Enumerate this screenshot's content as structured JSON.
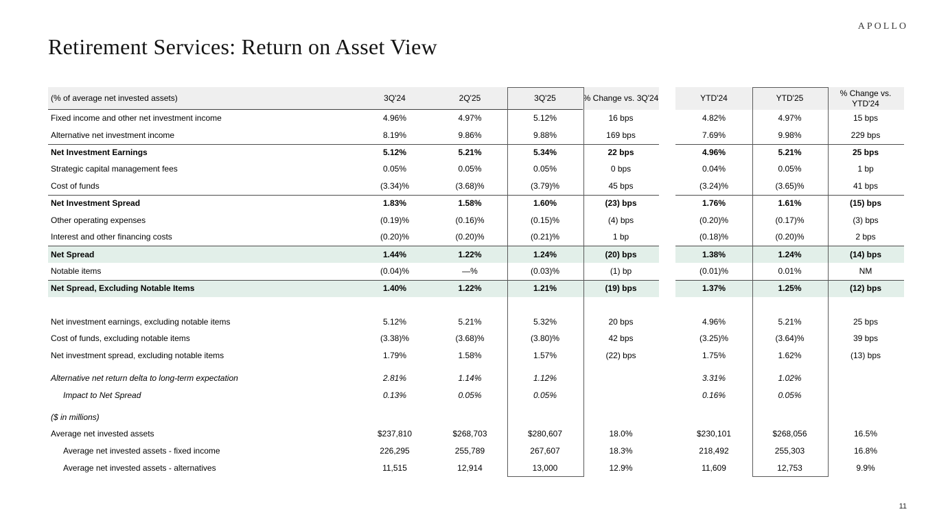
{
  "logo": "APOLLO",
  "title": "Retirement Services: Return on Asset View",
  "page_number": "11",
  "colors": {
    "header_bg": "#efefef",
    "highlight_bg": "#e2efe9",
    "rule_line": "#4a4a4a",
    "column_box_border": "#595959"
  },
  "table": {
    "header": {
      "label": "(% of average net invested assets)",
      "columns": [
        "3Q'24",
        "2Q'25",
        "3Q'25",
        "% Change vs. 3Q'24",
        "YTD'24",
        "YTD'25",
        "% Change vs. YTD'24"
      ]
    },
    "rows": [
      {
        "label": "Fixed income and other net investment income",
        "values": [
          "4.96%",
          "4.97%",
          "5.12%",
          "16 bps",
          "4.82%",
          "4.97%",
          "15 bps"
        ]
      },
      {
        "label": "Alternative net investment income",
        "values": [
          "8.19%",
          "9.86%",
          "9.88%",
          "169 bps",
          "7.69%",
          "9.98%",
          "229 bps"
        ]
      },
      {
        "label": "Net Investment Earnings",
        "values": [
          "5.12%",
          "5.21%",
          "5.34%",
          "22 bps",
          "4.96%",
          "5.21%",
          "25 bps"
        ],
        "bold": true,
        "line_top": true
      },
      {
        "label": "Strategic capital management fees",
        "values": [
          "0.05%",
          "0.05%",
          "0.05%",
          "0 bps",
          "0.04%",
          "0.05%",
          "1 bp"
        ]
      },
      {
        "label": "Cost of funds",
        "values": [
          "(3.34)%",
          "(3.68)%",
          "(3.79)%",
          "45 bps",
          "(3.24)%",
          "(3.65)%",
          "41 bps"
        ]
      },
      {
        "label": "Net Investment Spread",
        "values": [
          "1.83%",
          "1.58%",
          "1.60%",
          "(23) bps",
          "1.76%",
          "1.61%",
          "(15) bps"
        ],
        "bold": true,
        "line_top": true
      },
      {
        "label": "Other operating expenses",
        "values": [
          "(0.19)%",
          "(0.16)%",
          "(0.15)%",
          "(4) bps",
          "(0.20)%",
          "(0.17)%",
          "(3) bps"
        ]
      },
      {
        "label": "Interest and other financing costs",
        "values": [
          "(0.20)%",
          "(0.20)%",
          "(0.21)%",
          "1 bp",
          "(0.18)%",
          "(0.20)%",
          "2 bps"
        ]
      },
      {
        "label": "Net Spread",
        "values": [
          "1.44%",
          "1.22%",
          "1.24%",
          "(20) bps",
          "1.38%",
          "1.24%",
          "(14) bps"
        ],
        "bold": true,
        "line_top": true,
        "highlight": true
      },
      {
        "label": "Notable items",
        "values": [
          "(0.04)%",
          "—%",
          "(0.03)%",
          "(1) bp",
          "(0.01)%",
          "0.01%",
          "NM"
        ]
      },
      {
        "label": "Net Spread, Excluding Notable Items",
        "values": [
          "1.40%",
          "1.22%",
          "1.21%",
          "(19) bps",
          "1.37%",
          "1.25%",
          "(12) bps"
        ],
        "bold": true,
        "line_top": true,
        "highlight": true
      },
      {
        "spacer": 24
      },
      {
        "label": "Net investment earnings, excluding notable items",
        "values": [
          "5.12%",
          "5.21%",
          "5.32%",
          "20 bps",
          "4.96%",
          "5.21%",
          "25 bps"
        ]
      },
      {
        "label": "Cost of funds, excluding notable items",
        "values": [
          "(3.38)%",
          "(3.68)%",
          "(3.80)%",
          "42 bps",
          "(3.25)%",
          "(3.64)%",
          "39 bps"
        ]
      },
      {
        "label": "Net investment spread, excluding notable items",
        "values": [
          "1.79%",
          "1.58%",
          "1.57%",
          "(22) bps",
          "1.75%",
          "1.62%",
          "(13) bps"
        ]
      },
      {
        "spacer": 8
      },
      {
        "label": "Alternative net return delta to long-term expectation",
        "values": [
          "2.81%",
          "1.14%",
          "1.12%",
          "",
          "3.31%",
          "1.02%",
          ""
        ],
        "italic": true
      },
      {
        "label": "Impact to Net Spread",
        "values": [
          "0.13%",
          "0.05%",
          "0.05%",
          "",
          "0.16%",
          "0.05%",
          ""
        ],
        "italic": true,
        "indent": true
      },
      {
        "spacer": 7
      },
      {
        "label": "($ in millions)",
        "values": [
          "",
          "",
          "",
          "",
          "",
          "",
          ""
        ],
        "italic": true
      },
      {
        "label": "Average net invested assets",
        "values": [
          "$237,810",
          "$268,703",
          "$280,607",
          "18.0%",
          "$230,101",
          "$268,056",
          "16.5%"
        ]
      },
      {
        "label": "Average net invested assets - fixed income",
        "values": [
          "226,295",
          "255,789",
          "267,607",
          "18.3%",
          "218,492",
          "255,303",
          "16.8%"
        ],
        "indent": true
      },
      {
        "label": "Average net invested assets - alternatives",
        "values": [
          "11,515",
          "12,914",
          "13,000",
          "12.9%",
          "11,609",
          "12,753",
          "9.9%"
        ],
        "indent": true
      }
    ]
  }
}
